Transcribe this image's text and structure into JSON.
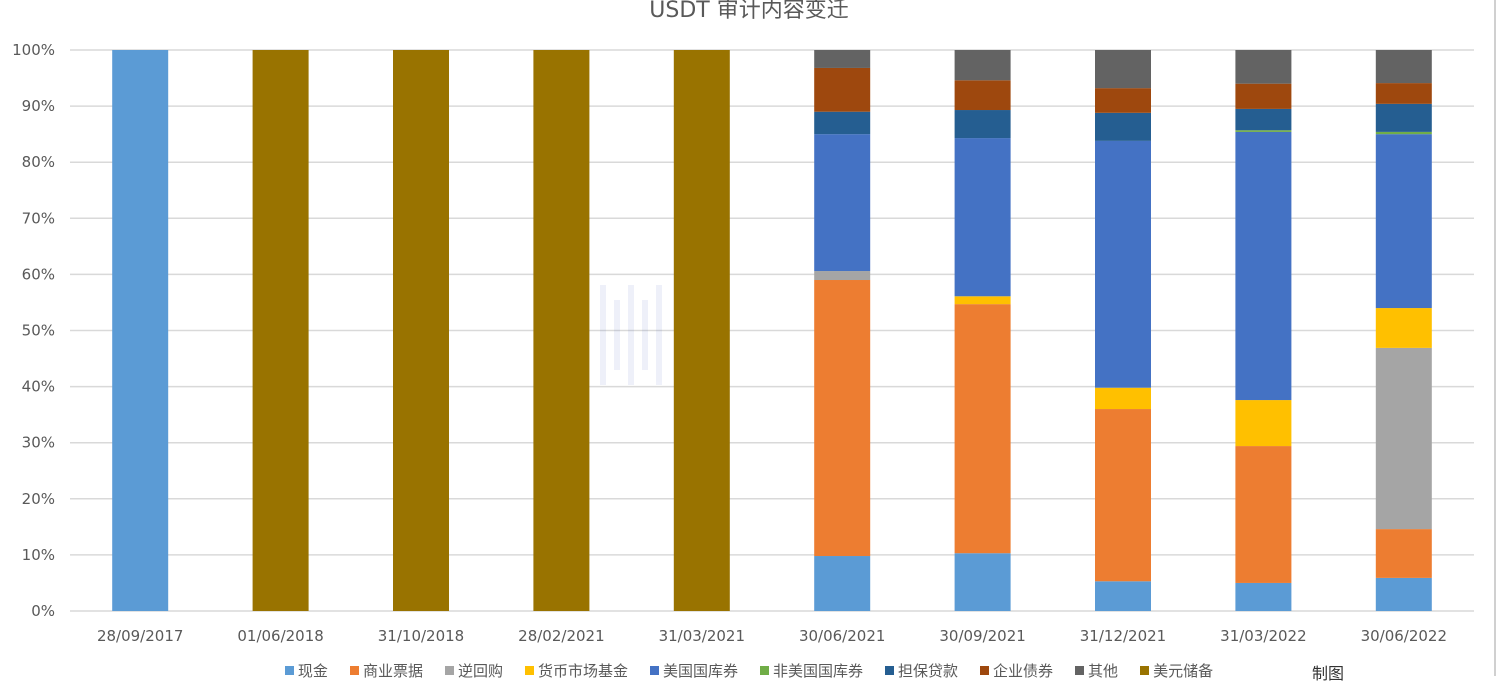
{
  "chart_data": {
    "type": "bar",
    "stacked": true,
    "percent_stacked": true,
    "title": "USDT 审计内容变迁",
    "xlabel": "",
    "ylabel": "",
    "ylim": [
      0,
      100
    ],
    "yticks": [
      "0%",
      "10%",
      "20%",
      "30%",
      "40%",
      "50%",
      "60%",
      "70%",
      "80%",
      "90%",
      "100%"
    ],
    "grid": true,
    "legend_position": "bottom",
    "categories": [
      "28/09/2017",
      "01/06/2018",
      "31/10/2018",
      "28/02/2021",
      "31/03/2021",
      "30/06/2021",
      "30/09/2021",
      "31/12/2021",
      "31/03/2022",
      "30/06/2022"
    ],
    "series": [
      {
        "name": "现金",
        "color": "#5b9bd5",
        "values": [
          100,
          0,
          0,
          0,
          0,
          9.8,
          10.3,
          5.3,
          5.0,
          5.9
        ]
      },
      {
        "name": "商业票据",
        "color": "#ed7d31",
        "values": [
          0,
          0,
          0,
          0,
          0,
          49.2,
          44.4,
          30.7,
          24.4,
          8.7
        ]
      },
      {
        "name": "逆回购",
        "color": "#a5a5a5",
        "values": [
          0,
          0,
          0,
          0,
          0,
          1.6,
          0,
          0,
          0,
          32.3
        ]
      },
      {
        "name": "货币市场基金",
        "color": "#ffc000",
        "values": [
          0,
          0,
          0,
          0,
          0,
          0,
          1.4,
          3.8,
          8.2,
          7.1
        ]
      },
      {
        "name": "美国国库券",
        "color": "#4472c4",
        "values": [
          0,
          0,
          0,
          0,
          0,
          24.4,
          28.2,
          44.0,
          47.8,
          31.0
        ]
      },
      {
        "name": "非美国国库券",
        "color": "#70ad47",
        "values": [
          0,
          0,
          0,
          0,
          0,
          0,
          0,
          0,
          0.3,
          0.4
        ]
      },
      {
        "name": "担保贷款",
        "color": "#255e91",
        "values": [
          0,
          0,
          0,
          0,
          0,
          4.0,
          5.0,
          5.0,
          3.8,
          5.0
        ]
      },
      {
        "name": "企业债券",
        "color": "#9e480e",
        "values": [
          0,
          0,
          0,
          0,
          0,
          7.8,
          5.3,
          4.4,
          4.5,
          3.7
        ]
      },
      {
        "name": "其他",
        "color": "#636363",
        "values": [
          0,
          0,
          0,
          0,
          0,
          3.2,
          5.4,
          6.8,
          6.0,
          5.9
        ]
      },
      {
        "name": "美元储备",
        "color": "#997300",
        "values": [
          0,
          100,
          100,
          100,
          100,
          0,
          0,
          0,
          0,
          0
        ]
      }
    ]
  },
  "credit": "制图"
}
